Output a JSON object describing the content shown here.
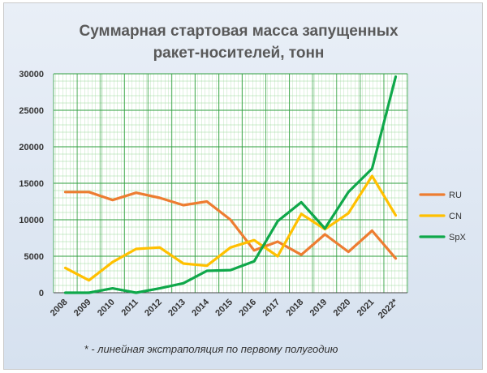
{
  "chart_data": {
    "type": "line",
    "title_lines": [
      "Суммарная стартовая масса запущенных",
      "ракет-носителей, тонн"
    ],
    "categories": [
      "2008",
      "2009",
      "2010",
      "2011",
      "2012",
      "2013",
      "2014",
      "2015",
      "2016",
      "2017",
      "2018",
      "2019",
      "2020",
      "2021",
      "2022*"
    ],
    "ylim": [
      0,
      30000
    ],
    "yticks": [
      "0",
      "5000",
      "10000",
      "15000",
      "20000",
      "25000",
      "30000"
    ],
    "grid": true,
    "legend_position": "right",
    "footnote": "* - линейная экстраполяция по первому полугодию",
    "series": [
      {
        "name": "RU",
        "color": "#ed7d31",
        "values": [
          13800,
          13800,
          12700,
          13700,
          13000,
          12000,
          12500,
          10000,
          5800,
          7000,
          5200,
          8000,
          5600,
          8500,
          4700
        ]
      },
      {
        "name": "CN",
        "color": "#ffc000",
        "values": [
          3400,
          1700,
          4200,
          6000,
          6200,
          4000,
          3700,
          6200,
          7200,
          5000,
          10800,
          8700,
          10900,
          16000,
          10600
        ]
      },
      {
        "name": "SpX",
        "color": "#0fa84a",
        "values": [
          0,
          0,
          600,
          0,
          600,
          1300,
          3000,
          3100,
          4300,
          9800,
          12400,
          8800,
          13800,
          17000,
          29600
        ]
      }
    ]
  }
}
